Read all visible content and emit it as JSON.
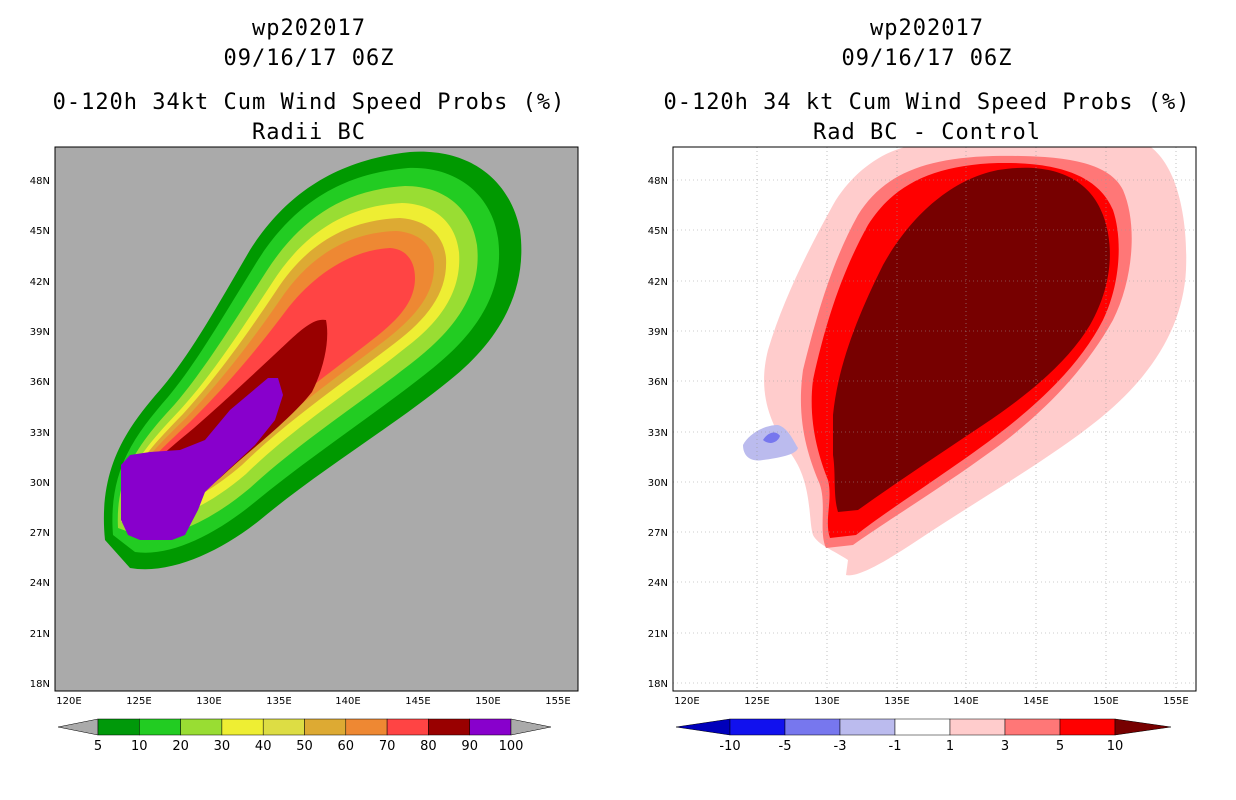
{
  "left": {
    "title": "wp202017",
    "datetime": "09/16/17 06Z",
    "product": "0-120h 34kt Cum Wind Speed Probs (%)",
    "subtitle": "Radii BC",
    "colorbar": {
      "labels": [
        "5",
        "10",
        "20",
        "30",
        "40",
        "50",
        "60",
        "70",
        "80",
        "90",
        "100"
      ],
      "colors": [
        "#00990a",
        "#22cc22",
        "#99dd33",
        "#eeee33",
        "#dddd44",
        "#ddaa33",
        "#ee8833",
        "#ff4444",
        "#990000",
        "#8800cc"
      ]
    }
  },
  "right": {
    "title": "wp202017",
    "datetime": "09/16/17 06Z",
    "product": "0-120h 34 kt Cum Wind Speed Probs (%)",
    "subtitle": "Rad BC - Control",
    "colorbar": {
      "labels": [
        "-10",
        "-5",
        "-3",
        "-1",
        "1",
        "3",
        "5",
        "10"
      ],
      "colors": [
        "#0000bb",
        "#1111ee",
        "#7777ee",
        "#bbbbee",
        "#ffffff",
        "#ffcccc",
        "#ff7777",
        "#ff0000",
        "#770000"
      ]
    }
  },
  "axes": {
    "lon_labels": [
      "120E",
      "125E",
      "130E",
      "135E",
      "140E",
      "145E",
      "150E",
      "155E"
    ],
    "lat_labels": [
      "48N",
      "45N",
      "42N",
      "39N",
      "36N",
      "33N",
      "30N",
      "27N",
      "24N",
      "21N",
      "18N"
    ]
  }
}
